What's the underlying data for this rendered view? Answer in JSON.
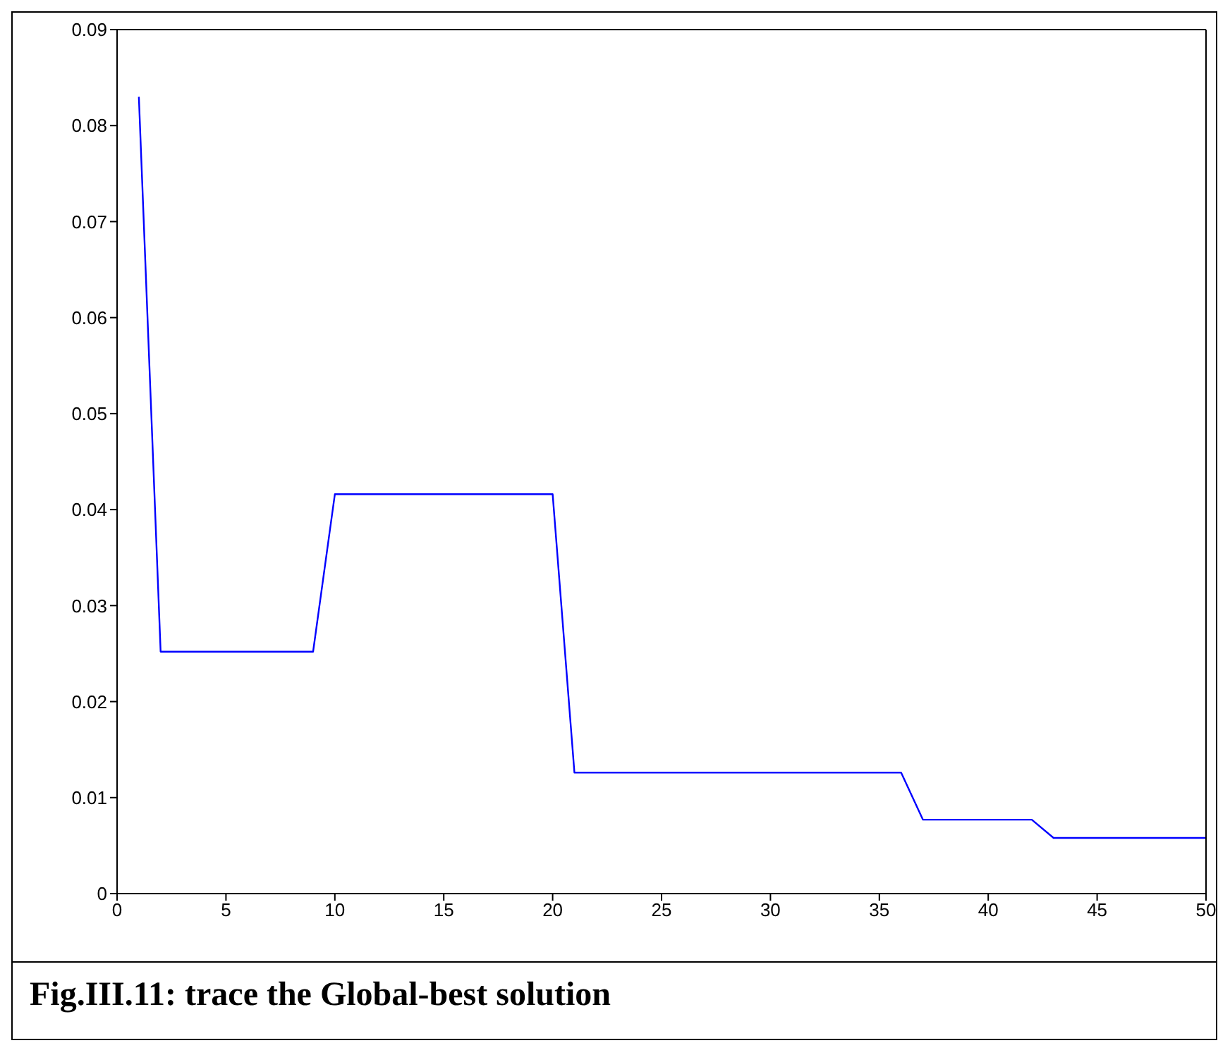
{
  "chart_data": {
    "type": "line",
    "annotations": [
      "Fig.III.11: trace the Global-best solution"
    ],
    "x": [
      1,
      2,
      9,
      10,
      20,
      21,
      36,
      37,
      42,
      43,
      50
    ],
    "series": [
      {
        "color": "#0000ff",
        "values": [
          0.083,
          0.0252,
          0.0252,
          0.0416,
          0.0416,
          0.0126,
          0.0126,
          0.0077,
          0.0077,
          0.0058,
          0.0058
        ]
      }
    ],
    "xlim": [
      0,
      50
    ],
    "xticks": [
      0,
      5,
      10,
      15,
      20,
      25,
      30,
      35,
      40,
      45,
      50
    ],
    "ylim": [
      0,
      0.09
    ],
    "yticks": [
      0,
      0.01,
      0.02,
      0.03,
      0.04,
      0.05,
      0.06,
      0.07,
      0.08,
      0.09
    ],
    "grid": false,
    "legend": false,
    "marker": "none",
    "line_style": "solid"
  }
}
